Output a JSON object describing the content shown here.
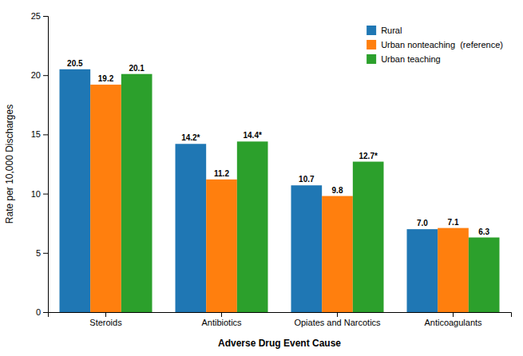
{
  "chart_data": {
    "type": "bar",
    "categories": [
      "Steroids",
      "Antibiotics",
      "Opiates and Narcotics",
      "Anticoagulants"
    ],
    "series": [
      {
        "name": "Rural",
        "values": [
          20.5,
          14.2,
          10.7,
          7.0
        ],
        "value_labels": [
          "20.5",
          "14.2*",
          "10.7",
          "7.0"
        ]
      },
      {
        "name": "Urban nonteaching  (reference)",
        "values": [
          19.2,
          11.2,
          9.8,
          7.1
        ],
        "value_labels": [
          "19.2",
          "11.2",
          "9.8",
          "7.1"
        ]
      },
      {
        "name": "Urban teaching",
        "values": [
          20.1,
          14.4,
          12.7,
          6.3
        ],
        "value_labels": [
          "20.1",
          "14.4*",
          "12.7*",
          "6.3"
        ]
      }
    ],
    "xlabel": "Adverse Drug Event Cause",
    "ylabel": "Rate per 10,000 Discharges",
    "ylim": [
      0,
      25
    ],
    "yticks": [
      0,
      5,
      10,
      15,
      20,
      25
    ],
    "grid": false,
    "legend": "upper right",
    "data_labels": true
  }
}
